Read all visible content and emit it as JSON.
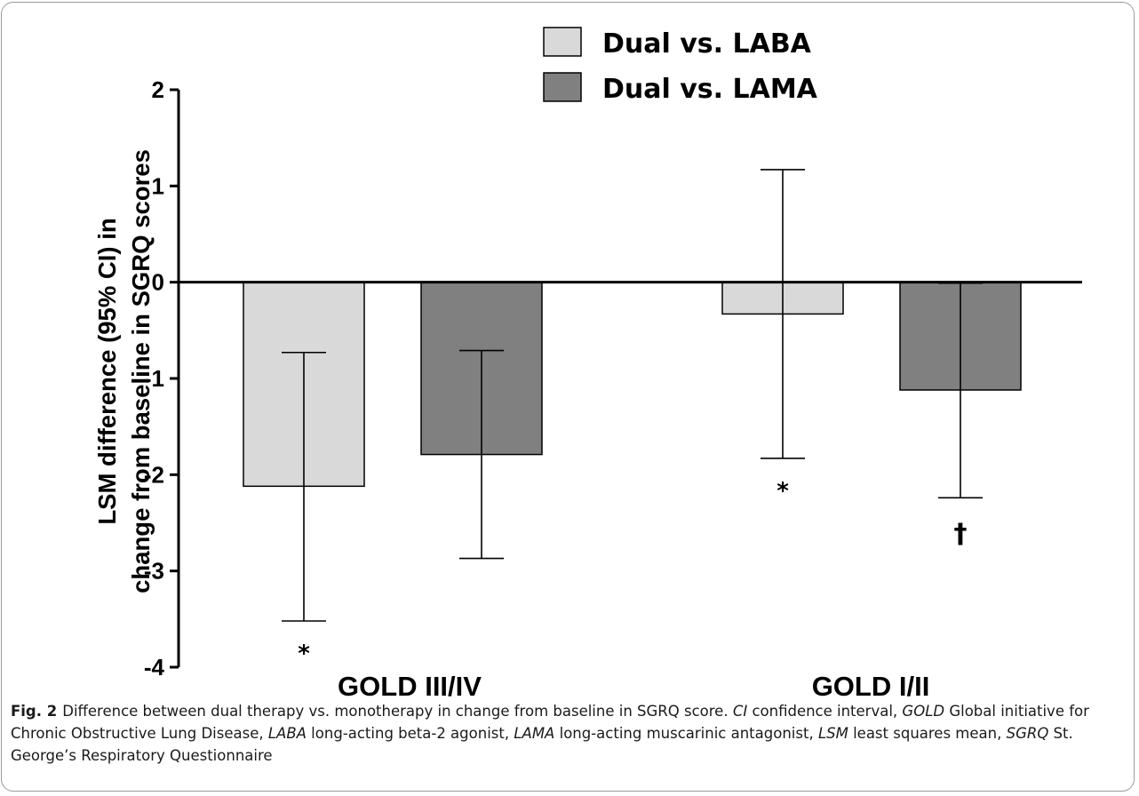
{
  "chart_data": {
    "type": "bar",
    "categories": [
      "GOLD III/IV",
      "GOLD I/II"
    ],
    "series": [
      {
        "name": "Dual vs. LABA",
        "color": "#d9d9d9",
        "values": [
          -2.12,
          -0.33
        ],
        "ci_low": [
          -3.52,
          -1.83
        ],
        "ci_high": [
          -0.73,
          1.17
        ]
      },
      {
        "name": "Dual vs. LAMA",
        "color": "#808080",
        "values": [
          -1.79,
          -1.12
        ],
        "ci_low": [
          -2.87,
          -2.24
        ],
        "ci_high": [
          -0.71,
          -0.01
        ]
      }
    ],
    "significance_markers": [
      [
        "*",
        ""
      ],
      [
        "*",
        "†"
      ]
    ],
    "ylabel_lines": [
      "LSM difference (95% CI) in",
      "change from baseline in SGRQ scores"
    ],
    "xlabel": "",
    "ylim": [
      -4,
      2
    ],
    "yticks": [
      2,
      1,
      0,
      -1,
      -2,
      -3,
      -4
    ],
    "ytick_labels": [
      "2",
      "1",
      "0",
      "-1",
      "-2",
      "-3",
      "-4"
    ],
    "grid": false,
    "legend_position": "top"
  },
  "caption": {
    "label": "Fig. 2",
    "parts": [
      {
        "t": "Difference between dual therapy vs. monotherapy in change from baseline in SGRQ score. ",
        "i": false
      },
      {
        "t": "CI",
        "i": true
      },
      {
        "t": " confidence interval, ",
        "i": false
      },
      {
        "t": "GOLD",
        "i": true
      },
      {
        "t": " Global initiative for Chronic Obstructive Lung Disease, ",
        "i": false
      },
      {
        "t": "LABA",
        "i": true
      },
      {
        "t": " long-acting beta-2 agonist, ",
        "i": false
      },
      {
        "t": "LAMA",
        "i": true
      },
      {
        "t": " long-acting muscarinic antagonist, ",
        "i": false
      },
      {
        "t": "LSM",
        "i": true
      },
      {
        "t": " least squares mean, ",
        "i": false
      },
      {
        "t": "SGRQ",
        "i": true
      },
      {
        "t": " St. George’s Respiratory Questionnaire",
        "i": false
      }
    ]
  }
}
